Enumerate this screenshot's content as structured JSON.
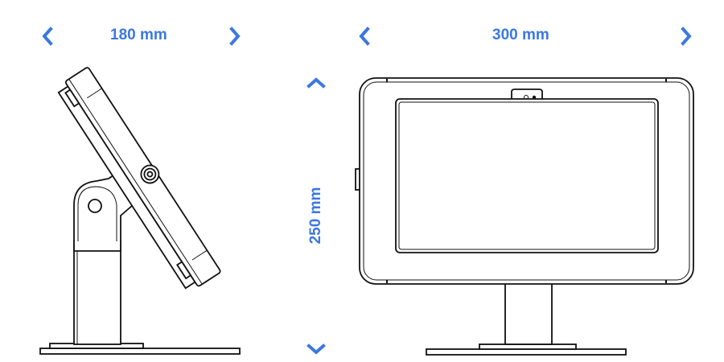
{
  "dimensions": {
    "depth": "180 mm",
    "width": "300 mm",
    "height": "250 mm"
  },
  "icons": {
    "left": "chevron-left-icon",
    "right": "chevron-right-icon",
    "up": "chevron-up-icon",
    "down": "chevron-down-icon"
  },
  "colors": {
    "accent": "#3b78e0",
    "line": "#111111"
  }
}
